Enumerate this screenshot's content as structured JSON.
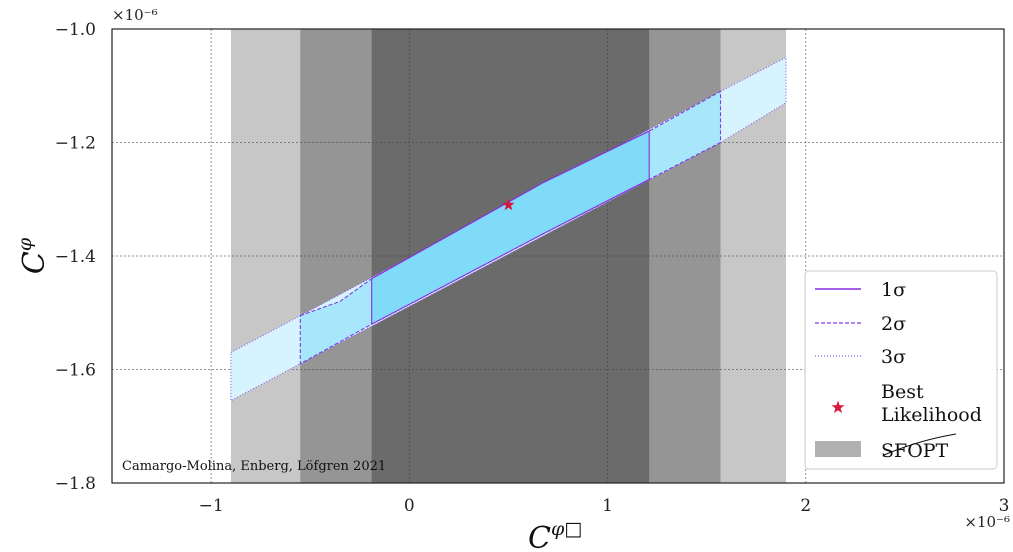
{
  "chart_data": {
    "type": "area",
    "x_axis": {
      "lim": [
        -1.5,
        3.0
      ],
      "ticks": [
        -1,
        0,
        1,
        2,
        3
      ],
      "tick_labels": [
        "−1",
        "0",
        "1",
        "2",
        "3"
      ],
      "label_base": "C",
      "label_sup": "φ□",
      "scale_label": "×10⁻⁶"
    },
    "y_axis": {
      "lim": [
        -1.8,
        -1.0
      ],
      "ticks": [
        -1.8,
        -1.6,
        -1.4,
        -1.2,
        -1.0
      ],
      "tick_labels": [
        "−1.8",
        "−1.6",
        "−1.4",
        "−1.2",
        "−1.0"
      ],
      "label_base": "C",
      "label_sup": "φ",
      "scale_label": "×10⁻⁶"
    },
    "grid": true,
    "sfopt_bands": [
      {
        "x_range": [
          -0.9,
          1.9
        ],
        "y_top": -1.0,
        "opacity": 0.22
      },
      {
        "x_range": [
          -0.55,
          1.57
        ],
        "y_top": -1.0,
        "opacity": 0.25
      },
      {
        "x_range": [
          -0.19,
          1.21
        ],
        "y_top": -1.0,
        "opacity": 0.28
      }
    ],
    "series": [
      {
        "name": "1σ",
        "color": "#8a2be2",
        "line_style": "solid",
        "fill": "#7fdbf8",
        "region": [
          [
            -0.19,
            -1.44
          ],
          [
            0.68,
            -1.27
          ],
          [
            1.21,
            -1.18
          ],
          [
            1.21,
            -1.265
          ],
          [
            0.68,
            -1.36
          ],
          [
            -0.19,
            -1.52
          ]
        ]
      },
      {
        "name": "2σ",
        "color": "#7b3fe4",
        "line_style": "dashed",
        "fill": "#a8e6fb",
        "region": [
          [
            -0.55,
            -1.505
          ],
          [
            -0.35,
            -1.48
          ],
          [
            -0.19,
            -1.44
          ],
          [
            0.68,
            -1.27
          ],
          [
            1.21,
            -1.18
          ],
          [
            1.57,
            -1.11
          ],
          [
            1.57,
            -1.2
          ],
          [
            1.21,
            -1.265
          ],
          [
            0.68,
            -1.36
          ],
          [
            -0.19,
            -1.52
          ],
          [
            -0.55,
            -1.59
          ]
        ]
      },
      {
        "name": "3σ",
        "color": "#8f5ae8",
        "line_style": "dotted",
        "fill": "#d7f3fd",
        "region": [
          [
            -0.9,
            -1.57
          ],
          [
            -0.55,
            -1.505
          ],
          [
            1.57,
            -1.11
          ],
          [
            1.9,
            -1.05
          ],
          [
            1.9,
            -1.13
          ],
          [
            1.57,
            -1.2
          ],
          [
            -0.55,
            -1.59
          ],
          [
            -0.9,
            -1.655
          ]
        ]
      }
    ],
    "best_likelihood": {
      "x": 0.5,
      "y": -1.31,
      "color": "#d7193f"
    },
    "legend": {
      "position": "lower-right",
      "entries": [
        {
          "kind": "solid",
          "label": "1σ"
        },
        {
          "kind": "dashed",
          "label": "2σ"
        },
        {
          "kind": "dotted",
          "label": "3σ"
        },
        {
          "kind": "star",
          "label_line1": "Best",
          "label_line2": "Likelihood"
        },
        {
          "kind": "patch",
          "label": "SFOPT",
          "strikethrough": true
        }
      ]
    },
    "annotation": "Camargo-Molina, Enberg, Löfgren 2021"
  }
}
